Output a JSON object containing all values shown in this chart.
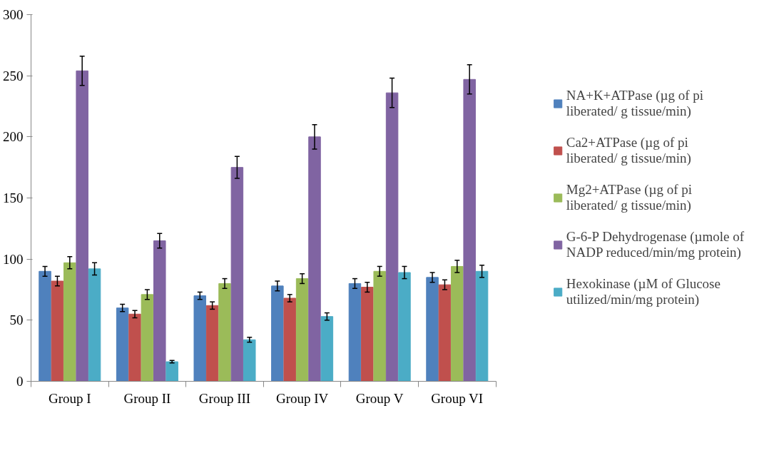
{
  "chart_data": {
    "type": "bar",
    "categories": [
      "Group I",
      "Group II",
      "Group III",
      "Group IV",
      "Group V",
      "Group VI"
    ],
    "series": [
      {
        "name": "NA+K+ATPase (µg of pi liberated/ g tissue/min)",
        "color": "#4f81bd",
        "values": [
          90,
          60,
          70,
          78,
          80,
          85
        ],
        "errors": [
          4,
          3,
          3,
          4,
          4,
          4
        ]
      },
      {
        "name": "Ca2+ATPase (µg of pi liberated/ g tissue/min)",
        "color": "#c0504d",
        "values": [
          82,
          55,
          62,
          68,
          77,
          79
        ],
        "errors": [
          4,
          3,
          3,
          3,
          4,
          4
        ]
      },
      {
        "name": "Mg2+ATPase (µg of pi liberated/ g tissue/min)",
        "color": "#9bbb59",
        "values": [
          97,
          71,
          80,
          84,
          90,
          94
        ],
        "errors": [
          5,
          4,
          4,
          4,
          4,
          5
        ]
      },
      {
        "name": "G-6-P Dehydrogenase (µmole of NADP reduced/min/mg protein)",
        "color": "#8064a2",
        "values": [
          254,
          115,
          175,
          200,
          236,
          247
        ],
        "errors": [
          12,
          6,
          9,
          10,
          12,
          12
        ]
      },
      {
        "name": "Hexokinase (µM of Glucose utilized/min/mg protein)",
        "color": "#4bacc6",
        "values": [
          92,
          16,
          34,
          53,
          89,
          90
        ],
        "errors": [
          5,
          1,
          2,
          3,
          5,
          5
        ]
      }
    ],
    "ylim": [
      0,
      300
    ],
    "yticks": [
      0,
      50,
      100,
      150,
      200,
      250,
      300
    ],
    "legend": "right"
  }
}
